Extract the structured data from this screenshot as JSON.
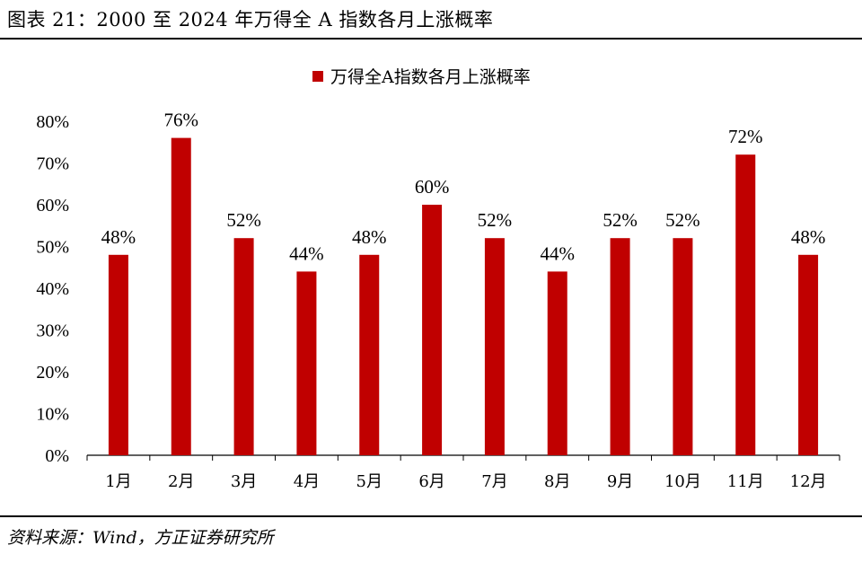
{
  "figure_title": "图表 21：2000 至 2024 年万得全 A 指数各月上涨概率",
  "source_note": "资料来源：Wind，方正证券研究所",
  "colors": {
    "bar": "#C00000",
    "axis": "#000000"
  },
  "chart_data": {
    "type": "bar",
    "categories": [
      "1月",
      "2月",
      "3月",
      "4月",
      "5月",
      "6月",
      "7月",
      "8月",
      "9月",
      "10月",
      "11月",
      "12月"
    ],
    "series": [
      {
        "name": "万得全A指数各月上涨概率",
        "values": [
          48,
          76,
          52,
          44,
          48,
          60,
          52,
          44,
          52,
          52,
          72,
          48
        ]
      }
    ],
    "data_labels": [
      "48%",
      "76%",
      "52%",
      "44%",
      "48%",
      "60%",
      "52%",
      "44%",
      "52%",
      "52%",
      "72%",
      "48%"
    ],
    "y_ticks": [
      "0%",
      "10%",
      "20%",
      "30%",
      "40%",
      "50%",
      "60%",
      "70%",
      "80%"
    ],
    "ylim": [
      0,
      80
    ],
    "legend_position": "top-center",
    "grid": false
  }
}
